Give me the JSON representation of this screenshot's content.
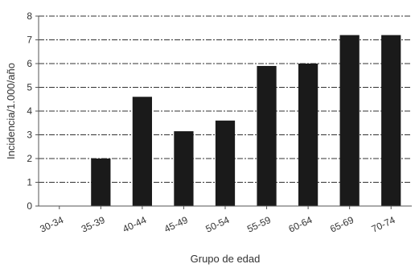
{
  "chart_data": {
    "type": "bar",
    "title": "",
    "xlabel": "Grupo de edad",
    "ylabel": "Incidencia/1.000/año",
    "categories": [
      "30-34",
      "35-39",
      "40-44",
      "45-49",
      "50-54",
      "55-59",
      "60-64",
      "65-69",
      "70-74"
    ],
    "values": [
      0,
      2.0,
      4.6,
      3.15,
      3.6,
      5.9,
      6.0,
      7.2,
      7.2
    ],
    "ylim": [
      0,
      8
    ],
    "yticks": [
      0,
      1,
      2,
      3,
      4,
      5,
      6,
      7,
      8
    ],
    "grid": true,
    "colors": {
      "bar": "#1a1a1a",
      "grid": "#333333",
      "axis": "#555555"
    }
  }
}
